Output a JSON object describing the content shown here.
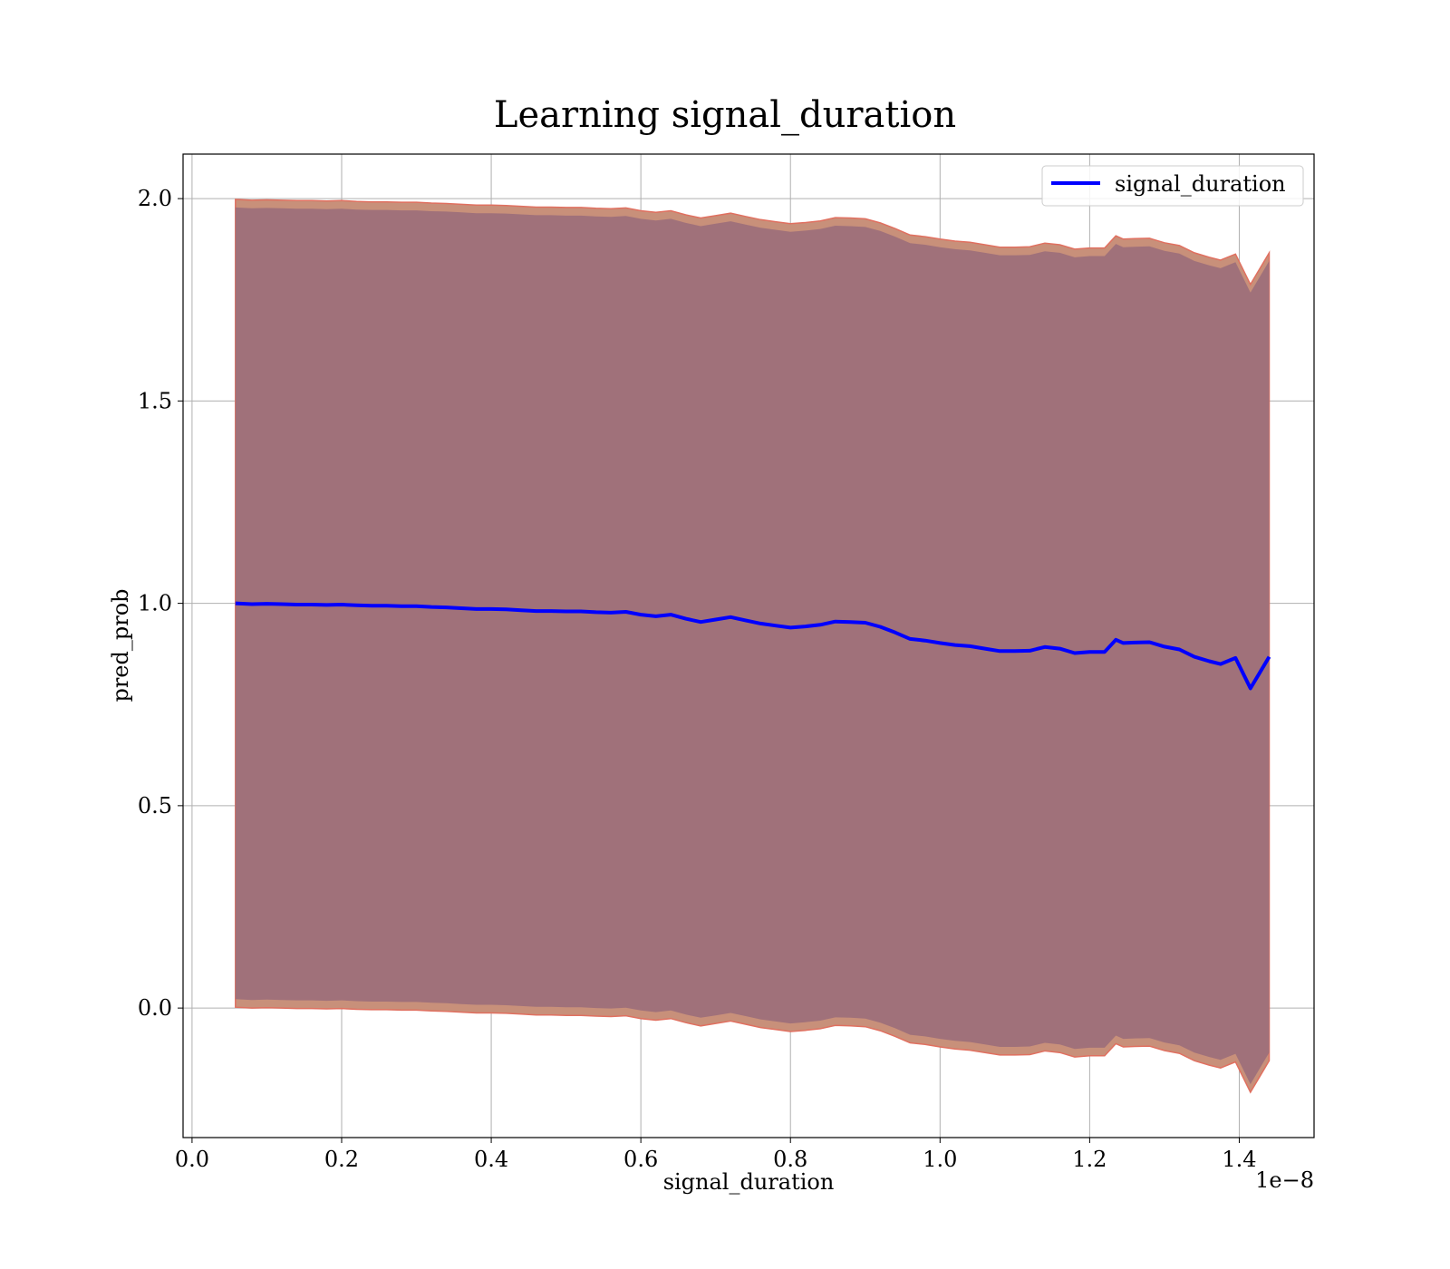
{
  "chart_data": {
    "type": "line",
    "title": "Learning signal_duration",
    "xlabel": "signal_duration",
    "ylabel": "pred_prob",
    "x_offset_text": "1e−8",
    "xlim": [
      -1.2e-10,
      1.5e-08
    ],
    "ylim": [
      -0.32,
      2.11
    ],
    "x_ticks": [
      0.0,
      2e-09,
      4e-09,
      6e-09,
      8e-09,
      1e-08,
      1.2e-08,
      1.4e-08
    ],
    "x_tick_labels": [
      "0.0",
      "0.2",
      "0.4",
      "0.6",
      "0.8",
      "1.0",
      "1.2",
      "1.4"
    ],
    "y_ticks": [
      0.0,
      0.5,
      1.0,
      1.5,
      2.0
    ],
    "y_tick_labels": [
      "0.0",
      "0.5",
      "1.0",
      "1.5",
      "2.0"
    ],
    "grid": true,
    "legend_position": "top-right",
    "legend": [
      {
        "label": "signal_duration",
        "color": "#0000ff"
      }
    ],
    "colors": {
      "line": "#0000ff",
      "band_inner": "#a0717a",
      "band_outer": "#c8907a",
      "band_edge": "#e07060",
      "grid": "#b0b0b0"
    },
    "series": [
      {
        "name": "signal_duration",
        "x": [
          5.8e-10,
          8e-10,
          1e-09,
          1.2e-09,
          1.4e-09,
          1.6e-09,
          1.8e-09,
          2e-09,
          2.2e-09,
          2.4e-09,
          2.6e-09,
          2.8e-09,
          3e-09,
          3.2e-09,
          3.4e-09,
          3.6e-09,
          3.8e-09,
          4e-09,
          4.2e-09,
          4.4e-09,
          4.6e-09,
          4.8e-09,
          5e-09,
          5.2e-09,
          5.4e-09,
          5.6e-09,
          5.8e-09,
          6e-09,
          6.2e-09,
          6.4e-09,
          6.6e-09,
          6.8e-09,
          7e-09,
          7.2e-09,
          7.4e-09,
          7.6e-09,
          7.8e-09,
          8e-09,
          8.2e-09,
          8.4e-09,
          8.6e-09,
          8.8e-09,
          9e-09,
          9.2e-09,
          9.4e-09,
          9.6e-09,
          9.8e-09,
          1e-08,
          1.02e-08,
          1.04e-08,
          1.06e-08,
          1.08e-08,
          1.1e-08,
          1.12e-08,
          1.14e-08,
          1.16e-08,
          1.18e-08,
          1.2e-08,
          1.22e-08,
          1.235e-08,
          1.245e-08,
          1.26e-08,
          1.28e-08,
          1.3e-08,
          1.32e-08,
          1.34e-08,
          1.36e-08,
          1.375e-08,
          1.395e-08,
          1.415e-08,
          1.44e-08
        ],
        "mean": [
          1.0,
          0.998,
          0.999,
          0.998,
          0.997,
          0.997,
          0.996,
          0.997,
          0.995,
          0.994,
          0.994,
          0.993,
          0.993,
          0.991,
          0.99,
          0.988,
          0.986,
          0.986,
          0.985,
          0.983,
          0.981,
          0.981,
          0.98,
          0.98,
          0.978,
          0.977,
          0.979,
          0.972,
          0.968,
          0.972,
          0.962,
          0.954,
          0.96,
          0.966,
          0.958,
          0.95,
          0.945,
          0.94,
          0.943,
          0.947,
          0.955,
          0.954,
          0.952,
          0.942,
          0.928,
          0.912,
          0.908,
          0.902,
          0.897,
          0.894,
          0.888,
          0.882,
          0.882,
          0.883,
          0.892,
          0.888,
          0.877,
          0.88,
          0.88,
          0.91,
          0.902,
          0.903,
          0.904,
          0.893,
          0.886,
          0.868,
          0.857,
          0.85,
          0.865,
          0.79,
          0.868
        ],
        "upper_outer": [
          1.998,
          1.996,
          1.997,
          1.996,
          1.995,
          1.995,
          1.994,
          1.995,
          1.993,
          1.992,
          1.992,
          1.991,
          1.991,
          1.989,
          1.988,
          1.986,
          1.984,
          1.984,
          1.983,
          1.981,
          1.979,
          1.979,
          1.978,
          1.978,
          1.976,
          1.975,
          1.977,
          1.97,
          1.966,
          1.97,
          1.96,
          1.952,
          1.958,
          1.964,
          1.956,
          1.948,
          1.943,
          1.938,
          1.941,
          1.945,
          1.953,
          1.952,
          1.95,
          1.94,
          1.926,
          1.91,
          1.906,
          1.9,
          1.895,
          1.892,
          1.886,
          1.88,
          1.88,
          1.881,
          1.89,
          1.886,
          1.875,
          1.878,
          1.878,
          1.908,
          1.9,
          1.901,
          1.902,
          1.891,
          1.884,
          1.866,
          1.855,
          1.848,
          1.863,
          1.788,
          1.866
        ],
        "upper_inner": [
          1.978,
          1.976,
          1.977,
          1.976,
          1.975,
          1.975,
          1.974,
          1.975,
          1.973,
          1.972,
          1.972,
          1.971,
          1.971,
          1.969,
          1.968,
          1.966,
          1.964,
          1.964,
          1.963,
          1.961,
          1.959,
          1.959,
          1.958,
          1.958,
          1.956,
          1.955,
          1.957,
          1.95,
          1.946,
          1.95,
          1.94,
          1.932,
          1.938,
          1.944,
          1.936,
          1.928,
          1.923,
          1.918,
          1.921,
          1.925,
          1.933,
          1.932,
          1.93,
          1.92,
          1.906,
          1.89,
          1.886,
          1.88,
          1.875,
          1.872,
          1.866,
          1.86,
          1.86,
          1.861,
          1.87,
          1.866,
          1.855,
          1.858,
          1.858,
          1.888,
          1.88,
          1.881,
          1.882,
          1.871,
          1.864,
          1.846,
          1.835,
          1.828,
          1.843,
          1.768,
          1.846
        ],
        "lower_inner": [
          0.022,
          0.02,
          0.021,
          0.02,
          0.019,
          0.019,
          0.018,
          0.019,
          0.017,
          0.016,
          0.016,
          0.015,
          0.015,
          0.013,
          0.012,
          0.01,
          0.008,
          0.008,
          0.007,
          0.005,
          0.003,
          0.003,
          0.002,
          0.002,
          0.0,
          -0.001,
          0.001,
          -0.006,
          -0.01,
          -0.006,
          -0.016,
          -0.024,
          -0.018,
          -0.012,
          -0.02,
          -0.028,
          -0.033,
          -0.038,
          -0.035,
          -0.031,
          -0.023,
          -0.024,
          -0.026,
          -0.036,
          -0.05,
          -0.066,
          -0.07,
          -0.076,
          -0.081,
          -0.084,
          -0.09,
          -0.096,
          -0.096,
          -0.095,
          -0.086,
          -0.09,
          -0.101,
          -0.098,
          -0.098,
          -0.068,
          -0.076,
          -0.075,
          -0.074,
          -0.085,
          -0.092,
          -0.11,
          -0.121,
          -0.128,
          -0.113,
          -0.188,
          -0.11
        ],
        "lower_outer": [
          0.002,
          0.0,
          0.001,
          0.0,
          -0.001,
          -0.001,
          -0.002,
          -0.001,
          -0.003,
          -0.004,
          -0.004,
          -0.005,
          -0.005,
          -0.007,
          -0.008,
          -0.01,
          -0.012,
          -0.012,
          -0.013,
          -0.015,
          -0.017,
          -0.017,
          -0.018,
          -0.018,
          -0.02,
          -0.021,
          -0.019,
          -0.026,
          -0.03,
          -0.026,
          -0.036,
          -0.044,
          -0.038,
          -0.032,
          -0.04,
          -0.048,
          -0.053,
          -0.058,
          -0.055,
          -0.051,
          -0.043,
          -0.044,
          -0.046,
          -0.056,
          -0.07,
          -0.086,
          -0.09,
          -0.096,
          -0.101,
          -0.104,
          -0.11,
          -0.116,
          -0.116,
          -0.115,
          -0.106,
          -0.11,
          -0.121,
          -0.118,
          -0.118,
          -0.088,
          -0.096,
          -0.095,
          -0.094,
          -0.105,
          -0.112,
          -0.13,
          -0.141,
          -0.148,
          -0.133,
          -0.208,
          -0.13
        ]
      }
    ]
  }
}
